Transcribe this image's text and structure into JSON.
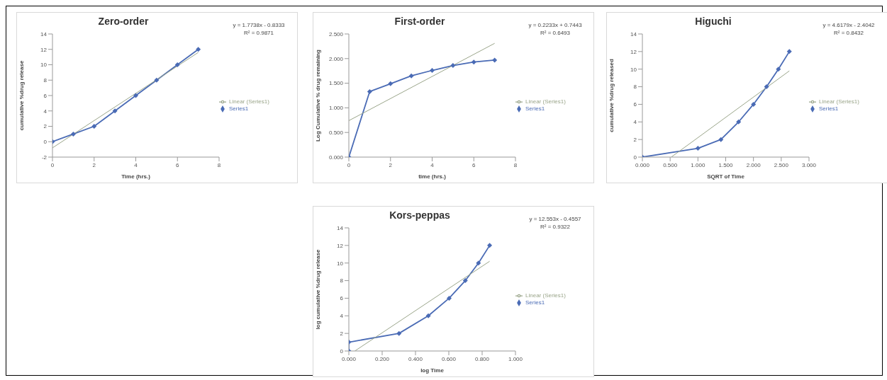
{
  "chart_data": [
    {
      "type": "line",
      "title": "Zero-order",
      "xlabel": "Time (hrs.)",
      "ylabel": "cumulative %drug release",
      "legend": "right",
      "marker": "diamond",
      "annotations": [
        "y = 1.7738x - 0.8333",
        "R² = 0.9871"
      ],
      "xlim": [
        0,
        8
      ],
      "xticks": [
        0,
        2,
        4,
        6,
        8
      ],
      "ylim": [
        -2,
        14
      ],
      "yticks": [
        -2,
        0,
        2,
        4,
        6,
        8,
        10,
        12,
        14
      ],
      "series": [
        {
          "name": "Series1",
          "color": "#4a6bb5",
          "x": [
            0,
            1,
            2,
            3,
            4,
            5,
            6,
            7
          ],
          "values": [
            0,
            1,
            2,
            4,
            6,
            8,
            10,
            12
          ]
        },
        {
          "name": "Linear (Series1)",
          "color": "#9aa58a",
          "marker": "none",
          "x": [
            0,
            7
          ],
          "values": [
            -0.8,
            11.6
          ]
        }
      ]
    },
    {
      "type": "line",
      "title": "First-order",
      "xlabel": "time (hrs.)",
      "ylabel": "Log Cumulative % drug remaining",
      "legend": "right",
      "marker": "diamond",
      "annotations": [
        "y = 0.2233x + 0.7443",
        "R² = 0.6493"
      ],
      "xlim": [
        0,
        8
      ],
      "xticks": [
        0,
        2,
        4,
        6,
        8
      ],
      "ylim": [
        0,
        2.5
      ],
      "yticks": [
        {
          "value": 0,
          "label": "0.000"
        },
        {
          "value": 0.5,
          "label": "0.500"
        },
        {
          "value": 1,
          "label": "1.000"
        },
        {
          "value": 1.5,
          "label": "1.500"
        },
        {
          "value": 2,
          "label": "2.000"
        },
        {
          "value": 2.5,
          "label": "2.500"
        }
      ],
      "series": [
        {
          "name": "Series1",
          "color": "#4a6bb5",
          "x": [
            0,
            1,
            2,
            3,
            4,
            5,
            6,
            7
          ],
          "values": [
            0,
            1.33,
            1.49,
            1.65,
            1.76,
            1.86,
            1.93,
            1.97
          ]
        },
        {
          "name": "Linear (Series1)",
          "color": "#9aa58a",
          "marker": "none",
          "x": [
            0,
            7
          ],
          "values": [
            0.74,
            2.31
          ]
        }
      ]
    },
    {
      "type": "line",
      "title": "Higuchi",
      "xlabel": "SQRT of Time",
      "ylabel": "cumulative %drug released",
      "legend": "right",
      "marker": "diamond",
      "annotations": [
        "y = 4.6179x - 2.4042",
        "R² = 0.8432"
      ],
      "xlim": [
        0,
        3
      ],
      "xticks": [
        {
          "value": 0,
          "label": "0.000"
        },
        {
          "value": 0.5,
          "label": "0.500"
        },
        {
          "value": 1,
          "label": "1.000"
        },
        {
          "value": 1.5,
          "label": "1.500"
        },
        {
          "value": 2,
          "label": "2.000"
        },
        {
          "value": 2.5,
          "label": "2.500"
        },
        {
          "value": 3,
          "label": "3.000"
        }
      ],
      "ylim": [
        0,
        14
      ],
      "yticks": [
        0,
        2,
        4,
        6,
        8,
        10,
        12,
        14
      ],
      "series": [
        {
          "name": "Series1",
          "color": "#4a6bb5",
          "x": [
            0,
            1,
            1.414,
            1.732,
            2,
            2.236,
            2.449,
            2.646
          ],
          "values": [
            0,
            1,
            2,
            4,
            6,
            8,
            10,
            12
          ]
        },
        {
          "name": "Linear (Series1)",
          "color": "#9aa58a",
          "marker": "none",
          "x": [
            0.52,
            2.646
          ],
          "values": [
            0,
            9.8
          ]
        }
      ]
    },
    {
      "type": "line",
      "title": "Kors-peppas",
      "xlabel": "log Time",
      "ylabel": "log cumulative %drug release",
      "legend": "right",
      "marker": "diamond",
      "annotations": [
        "y = 12.553x - 0.4557",
        "R² = 0.9322"
      ],
      "xlim": [
        0,
        1
      ],
      "xticks": [
        {
          "value": 0,
          "label": "0.000"
        },
        {
          "value": 0.2,
          "label": "0.200"
        },
        {
          "value": 0.4,
          "label": "0.400"
        },
        {
          "value": 0.6,
          "label": "0.600"
        },
        {
          "value": 0.8,
          "label": "0.800"
        },
        {
          "value": 1,
          "label": "1.000"
        }
      ],
      "ylim": [
        0,
        14
      ],
      "yticks": [
        0,
        2,
        4,
        6,
        8,
        10,
        12,
        14
      ],
      "series": [
        {
          "name": "Series1",
          "color": "#4a6bb5",
          "x": [
            0,
            0,
            0.301,
            0.477,
            0.602,
            0.699,
            0.778,
            0.845
          ],
          "values": [
            0,
            1,
            2,
            4,
            6,
            8,
            10,
            12
          ]
        },
        {
          "name": "Linear (Series1)",
          "color": "#9aa58a",
          "marker": "none",
          "x": [
            0.036,
            0.845
          ],
          "values": [
            0,
            10.2
          ]
        }
      ]
    }
  ]
}
